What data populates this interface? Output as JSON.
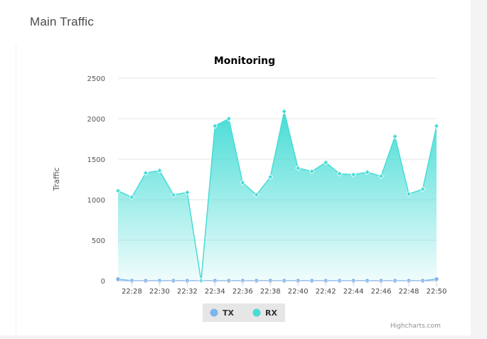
{
  "page": {
    "panel_title": "Main Traffic"
  },
  "chart_data": {
    "type": "area",
    "title": "Monitoring",
    "xlabel": "",
    "ylabel": "Traffic",
    "ylim": [
      0,
      2500
    ],
    "yticks": [
      0,
      500,
      1000,
      1500,
      2000,
      2500
    ],
    "x": [
      "22:27",
      "22:28",
      "22:29",
      "22:30",
      "22:31",
      "22:32",
      "22:33",
      "22:34",
      "22:35",
      "22:36",
      "22:37",
      "22:38",
      "22:39",
      "22:40",
      "22:41",
      "22:42",
      "22:43",
      "22:44",
      "22:45",
      "22:46",
      "22:47",
      "22:48",
      "22:49",
      "22:50"
    ],
    "xtick_labels": [
      "22:28",
      "22:30",
      "22:32",
      "22:34",
      "22:36",
      "22:38",
      "22:40",
      "22:42",
      "22:44",
      "22:46",
      "22:48",
      "22:50"
    ],
    "grid": true,
    "legend_position": "bottom-center",
    "series": [
      {
        "name": "TX",
        "color": "#7cb5ec",
        "values": [
          20,
          0,
          0,
          0,
          0,
          0,
          0,
          0,
          0,
          0,
          0,
          0,
          0,
          0,
          0,
          0,
          0,
          0,
          0,
          0,
          0,
          0,
          0,
          20
        ]
      },
      {
        "name": "RX",
        "color": "#47dcd6",
        "values": [
          1110,
          1030,
          1330,
          1360,
          1060,
          1090,
          0,
          1910,
          2000,
          1210,
          1060,
          1280,
          2090,
          1390,
          1350,
          1460,
          1320,
          1310,
          1340,
          1290,
          1780,
          1070,
          1130,
          1910
        ]
      }
    ]
  },
  "credits": "Highcharts.com"
}
